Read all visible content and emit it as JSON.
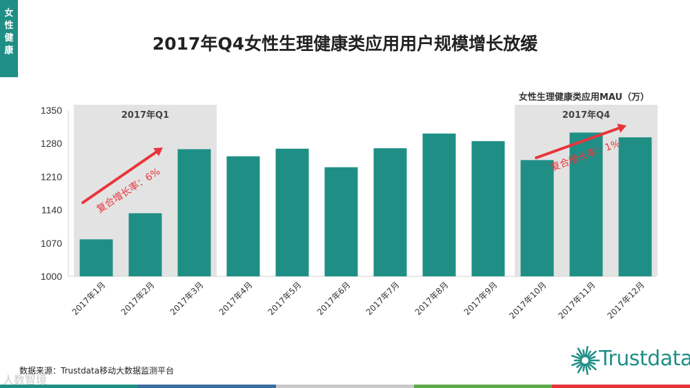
{
  "corner_tab": [
    "女",
    "性",
    "健",
    "康"
  ],
  "title": "2017年Q4女性生理健康类应用用户规模增长放缓",
  "source": "数据来源：Trustdata移动大数据监测平台",
  "watermark": "人数智境",
  "logo_text": "Trustdata",
  "colors": {
    "bar": "#1f8f86",
    "highlight_band": "#e3e3e3",
    "arrow": "#e8353a",
    "bottom_bar": [
      "#1f8f86",
      "#3a6e9e",
      "#c9c9c9",
      "#5fa84a",
      "#e8353a"
    ]
  },
  "chart_data": {
    "type": "bar",
    "title": "2017年Q4女性生理健康类应用用户规模增长放缓",
    "unit_label": "女性生理健康类应用MAU（万）",
    "categories": [
      "2017年1月",
      "2017年2月",
      "2017年3月",
      "2017年4月",
      "2017年5月",
      "2017年6月",
      "2017年7月",
      "2017年8月",
      "2017年9月",
      "2017年10月",
      "2017年11月",
      "2017年12月"
    ],
    "values": [
      1078,
      1133,
      1268,
      1253,
      1269,
      1230,
      1270,
      1301,
      1285,
      1245,
      1303,
      1293
    ],
    "ylim": [
      1000,
      1350
    ],
    "yticks": [
      1000,
      1070,
      1140,
      1210,
      1280,
      1350
    ],
    "grid": false,
    "highlights": [
      {
        "label": "2017年Q1",
        "range": [
          0,
          2
        ],
        "annotation": "复合增长率：6%"
      },
      {
        "label": "2017年Q4",
        "range": [
          9,
          11
        ],
        "annotation": "复合增长率：1%"
      }
    ]
  }
}
